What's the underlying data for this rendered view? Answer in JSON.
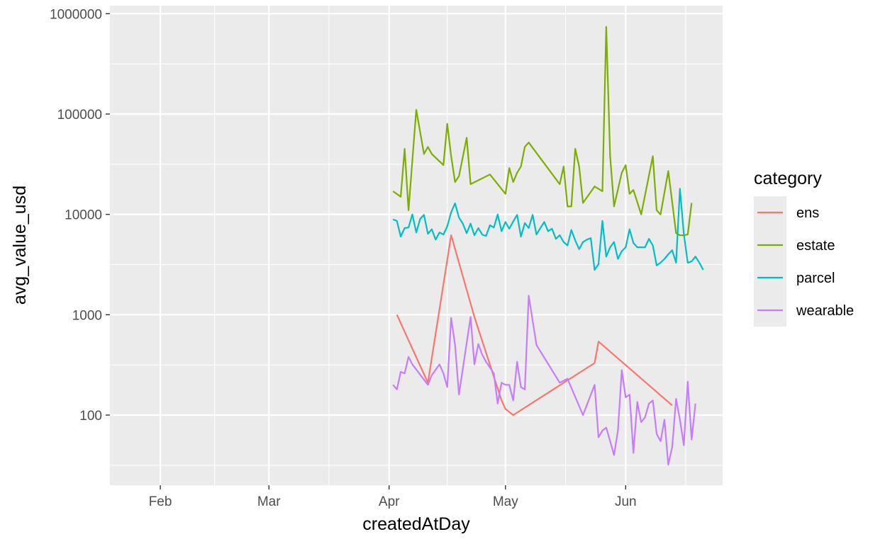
{
  "chart_data": {
    "type": "line",
    "title": "",
    "xlabel": "createdAtDay",
    "ylabel": "avg_value_usd",
    "y_scale": "log10",
    "ylim": [
      20,
      1000000
    ],
    "xlim": [
      "2022-01-19",
      "2022-06-26"
    ],
    "x_ticks": [
      {
        "date": "2022-02-01",
        "label": "Feb"
      },
      {
        "date": "2022-03-01",
        "label": "Mar"
      },
      {
        "date": "2022-04-01",
        "label": "Apr"
      },
      {
        "date": "2022-05-01",
        "label": "May"
      },
      {
        "date": "2022-06-01",
        "label": "Jun"
      }
    ],
    "y_ticks": [
      {
        "value": 100,
        "label": "100"
      },
      {
        "value": 1000,
        "label": "1000"
      },
      {
        "value": 10000,
        "label": "10000"
      },
      {
        "value": 100000,
        "label": "100000"
      },
      {
        "value": 1000000,
        "label": "1000000"
      }
    ],
    "grid": true,
    "legend": {
      "title": "category",
      "position": "right"
    },
    "series": [
      {
        "name": "ens",
        "color": "#F8766D",
        "points": [
          [
            "2022-04-03",
            1000
          ],
          [
            "2022-04-11",
            210
          ],
          [
            "2022-04-17",
            6200
          ],
          [
            "2022-04-23",
            950
          ],
          [
            "2022-04-30",
            140
          ],
          [
            "2022-05-01",
            115
          ],
          [
            "2022-05-03",
            100
          ],
          [
            "2022-05-24",
            330
          ],
          [
            "2022-05-25",
            540
          ],
          [
            "2022-06-13",
            125
          ]
        ]
      },
      {
        "name": "estate",
        "color": "#7CAE00",
        "points": [
          [
            "2022-04-02",
            17000
          ],
          [
            "2022-04-04",
            15000
          ],
          [
            "2022-04-05",
            45000
          ],
          [
            "2022-04-06",
            11000
          ],
          [
            "2022-04-08",
            110000
          ],
          [
            "2022-04-10",
            40000
          ],
          [
            "2022-04-11",
            47000
          ],
          [
            "2022-04-12",
            40000
          ],
          [
            "2022-04-15",
            31000
          ],
          [
            "2022-04-16",
            80000
          ],
          [
            "2022-04-17",
            38000
          ],
          [
            "2022-04-18",
            21000
          ],
          [
            "2022-04-19",
            24000
          ],
          [
            "2022-04-21",
            58000
          ],
          [
            "2022-04-22",
            20000
          ],
          [
            "2022-04-27",
            25000
          ],
          [
            "2022-05-01",
            16000
          ],
          [
            "2022-05-02",
            29000
          ],
          [
            "2022-05-03",
            21000
          ],
          [
            "2022-05-04",
            26000
          ],
          [
            "2022-05-05",
            30000
          ],
          [
            "2022-05-06",
            47000
          ],
          [
            "2022-05-07",
            52000
          ],
          [
            "2022-05-15",
            20000
          ],
          [
            "2022-05-16",
            30000
          ],
          [
            "2022-05-17",
            12000
          ],
          [
            "2022-05-18",
            12000
          ],
          [
            "2022-05-19",
            45000
          ],
          [
            "2022-05-20",
            30000
          ],
          [
            "2022-05-21",
            13000
          ],
          [
            "2022-05-24",
            19000
          ],
          [
            "2022-05-26",
            17000
          ],
          [
            "2022-05-27",
            740000
          ],
          [
            "2022-05-28",
            38000
          ],
          [
            "2022-05-29",
            12000
          ],
          [
            "2022-05-31",
            26000
          ],
          [
            "2022-06-01",
            31000
          ],
          [
            "2022-06-02",
            16000
          ],
          [
            "2022-06-03",
            17500
          ],
          [
            "2022-06-05",
            10000
          ],
          [
            "2022-06-08",
            38000
          ],
          [
            "2022-06-09",
            11000
          ],
          [
            "2022-06-10",
            10000
          ],
          [
            "2022-06-12",
            27000
          ],
          [
            "2022-06-14",
            6500
          ],
          [
            "2022-06-15",
            6200
          ],
          [
            "2022-06-16",
            6200
          ],
          [
            "2022-06-17",
            6300
          ],
          [
            "2022-06-18",
            13000
          ]
        ]
      },
      {
        "name": "parcel",
        "color": "#00BFC4",
        "points": [
          [
            "2022-04-02",
            8900
          ],
          [
            "2022-04-03",
            8600
          ],
          [
            "2022-04-04",
            6000
          ],
          [
            "2022-04-05",
            7300
          ],
          [
            "2022-04-06",
            7400
          ],
          [
            "2022-04-07",
            10000
          ],
          [
            "2022-04-08",
            6600
          ],
          [
            "2022-04-09",
            9000
          ],
          [
            "2022-04-10",
            9900
          ],
          [
            "2022-04-11",
            6400
          ],
          [
            "2022-04-12",
            7100
          ],
          [
            "2022-04-13",
            5600
          ],
          [
            "2022-04-14",
            6600
          ],
          [
            "2022-04-15",
            6300
          ],
          [
            "2022-04-16",
            7600
          ],
          [
            "2022-04-17",
            10500
          ],
          [
            "2022-04-18",
            12900
          ],
          [
            "2022-04-19",
            9300
          ],
          [
            "2022-04-20",
            8100
          ],
          [
            "2022-04-21",
            6500
          ],
          [
            "2022-04-22",
            8100
          ],
          [
            "2022-04-23",
            6200
          ],
          [
            "2022-04-24",
            7300
          ],
          [
            "2022-04-25",
            6300
          ],
          [
            "2022-04-26",
            6100
          ],
          [
            "2022-04-27",
            7800
          ],
          [
            "2022-04-28",
            7400
          ],
          [
            "2022-04-29",
            10000
          ],
          [
            "2022-04-30",
            6800
          ],
          [
            "2022-05-01",
            8400
          ],
          [
            "2022-05-02",
            7200
          ],
          [
            "2022-05-03",
            8500
          ],
          [
            "2022-05-04",
            9900
          ],
          [
            "2022-05-05",
            6000
          ],
          [
            "2022-05-06",
            8200
          ],
          [
            "2022-05-07",
            7300
          ],
          [
            "2022-05-08",
            9900
          ],
          [
            "2022-05-09",
            6300
          ],
          [
            "2022-05-10",
            7300
          ],
          [
            "2022-05-11",
            8400
          ],
          [
            "2022-05-12",
            6800
          ],
          [
            "2022-05-13",
            7200
          ],
          [
            "2022-05-14",
            5700
          ],
          [
            "2022-05-15",
            6200
          ],
          [
            "2022-05-16",
            5300
          ],
          [
            "2022-05-17",
            4900
          ],
          [
            "2022-05-18",
            7000
          ],
          [
            "2022-05-19",
            5500
          ],
          [
            "2022-05-20",
            4500
          ],
          [
            "2022-05-21",
            5300
          ],
          [
            "2022-05-22",
            5600
          ],
          [
            "2022-05-23",
            5800
          ],
          [
            "2022-05-24",
            2800
          ],
          [
            "2022-05-25",
            3200
          ],
          [
            "2022-05-26",
            8600
          ],
          [
            "2022-05-27",
            3800
          ],
          [
            "2022-05-28",
            4700
          ],
          [
            "2022-05-29",
            5300
          ],
          [
            "2022-05-30",
            3600
          ],
          [
            "2022-05-31",
            4300
          ],
          [
            "2022-06-01",
            4700
          ],
          [
            "2022-06-02",
            7100
          ],
          [
            "2022-06-03",
            5200
          ],
          [
            "2022-06-04",
            4700
          ],
          [
            "2022-06-05",
            4700
          ],
          [
            "2022-06-06",
            4700
          ],
          [
            "2022-06-07",
            5700
          ],
          [
            "2022-06-08",
            4900
          ],
          [
            "2022-06-09",
            3100
          ],
          [
            "2022-06-10",
            3300
          ],
          [
            "2022-06-11",
            3600
          ],
          [
            "2022-06-12",
            4000
          ],
          [
            "2022-06-13",
            4400
          ],
          [
            "2022-06-14",
            3300
          ],
          [
            "2022-06-15",
            18000
          ],
          [
            "2022-06-16",
            6400
          ],
          [
            "2022-06-17",
            3300
          ],
          [
            "2022-06-18",
            3400
          ],
          [
            "2022-06-19",
            3800
          ],
          [
            "2022-06-20",
            3300
          ],
          [
            "2022-06-21",
            2800
          ]
        ]
      },
      {
        "name": "wearable",
        "color": "#C77CFF",
        "points": [
          [
            "2022-04-02",
            200
          ],
          [
            "2022-04-03",
            180
          ],
          [
            "2022-04-04",
            270
          ],
          [
            "2022-04-05",
            260
          ],
          [
            "2022-04-06",
            380
          ],
          [
            "2022-04-07",
            320
          ],
          [
            "2022-04-11",
            200
          ],
          [
            "2022-04-12",
            250
          ],
          [
            "2022-04-14",
            320
          ],
          [
            "2022-04-15",
            260
          ],
          [
            "2022-04-16",
            190
          ],
          [
            "2022-04-17",
            930
          ],
          [
            "2022-04-18",
            500
          ],
          [
            "2022-04-19",
            160
          ],
          [
            "2022-04-22",
            950
          ],
          [
            "2022-04-23",
            320
          ],
          [
            "2022-04-24",
            510
          ],
          [
            "2022-04-25",
            400
          ],
          [
            "2022-04-26",
            340
          ],
          [
            "2022-04-28",
            260
          ],
          [
            "2022-04-29",
            130
          ],
          [
            "2022-04-30",
            210
          ],
          [
            "2022-05-01",
            200
          ],
          [
            "2022-05-02",
            200
          ],
          [
            "2022-05-03",
            140
          ],
          [
            "2022-05-04",
            340
          ],
          [
            "2022-05-05",
            190
          ],
          [
            "2022-05-06",
            180
          ],
          [
            "2022-05-07",
            1550
          ],
          [
            "2022-05-09",
            500
          ],
          [
            "2022-05-15",
            210
          ],
          [
            "2022-05-17",
            230
          ],
          [
            "2022-05-21",
            100
          ],
          [
            "2022-05-24",
            200
          ],
          [
            "2022-05-25",
            60
          ],
          [
            "2022-05-26",
            70
          ],
          [
            "2022-05-27",
            75
          ],
          [
            "2022-05-28",
            55
          ],
          [
            "2022-05-29",
            40
          ],
          [
            "2022-05-30",
            70
          ],
          [
            "2022-05-31",
            280
          ],
          [
            "2022-06-01",
            150
          ],
          [
            "2022-06-02",
            160
          ],
          [
            "2022-06-03",
            42
          ],
          [
            "2022-06-04",
            135
          ],
          [
            "2022-06-05",
            85
          ],
          [
            "2022-06-06",
            95
          ],
          [
            "2022-06-07",
            130
          ],
          [
            "2022-06-08",
            140
          ],
          [
            "2022-06-09",
            65
          ],
          [
            "2022-06-10",
            55
          ],
          [
            "2022-06-11",
            90
          ],
          [
            "2022-06-12",
            32
          ],
          [
            "2022-06-13",
            48
          ],
          [
            "2022-06-14",
            145
          ],
          [
            "2022-06-15",
            90
          ],
          [
            "2022-06-16",
            50
          ],
          [
            "2022-06-17",
            215
          ],
          [
            "2022-06-18",
            57
          ],
          [
            "2022-06-19",
            130
          ]
        ]
      }
    ]
  }
}
